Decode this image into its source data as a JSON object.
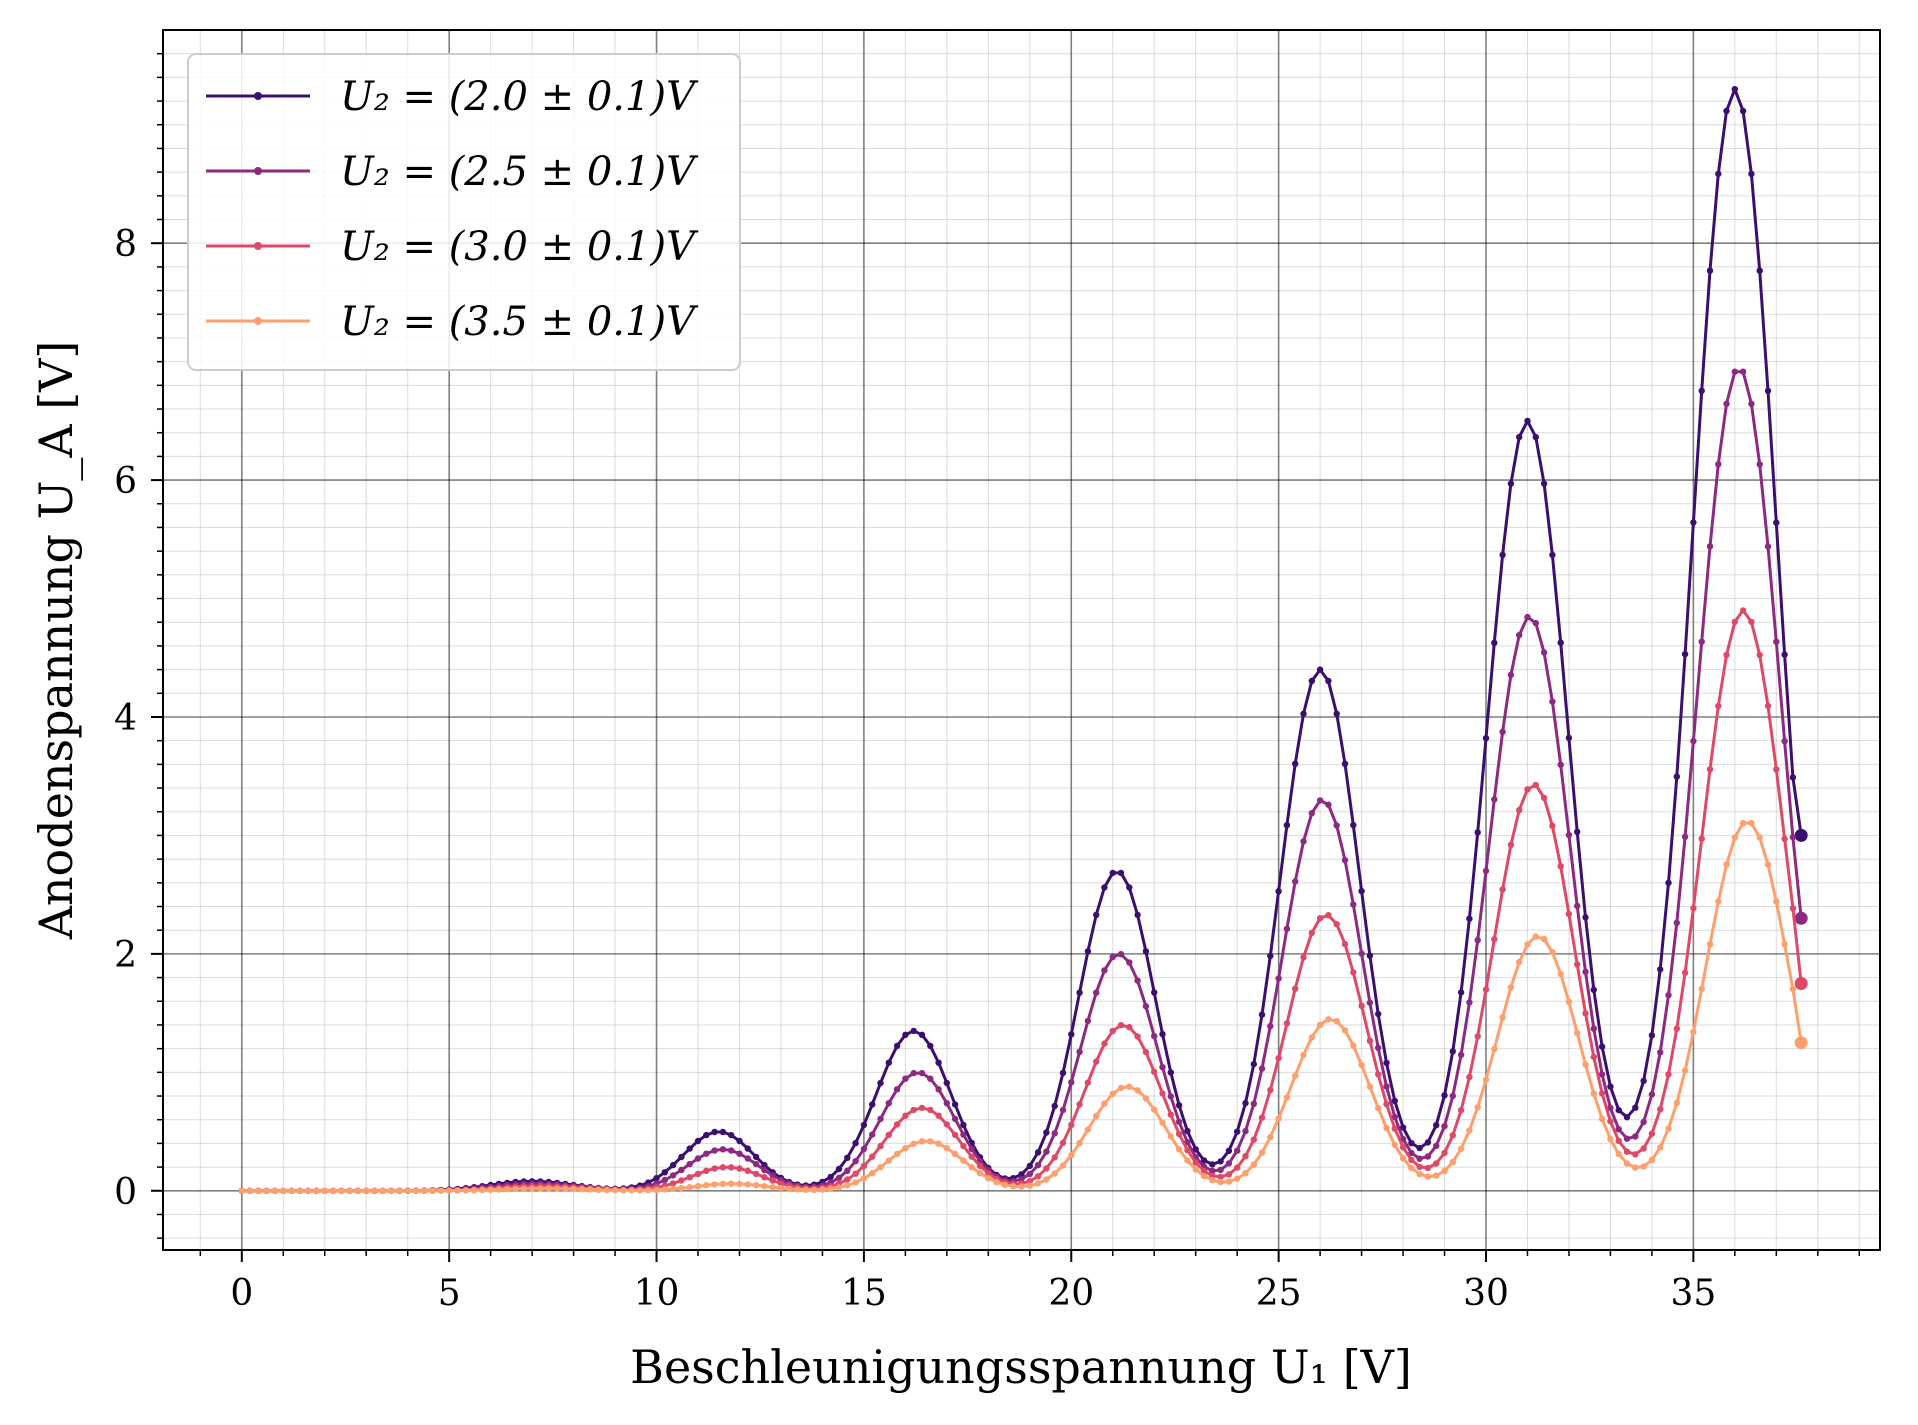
{
  "chart_data": {
    "type": "line",
    "title": "",
    "xlabel": "Beschleunigungsspannung U₁ [V]",
    "ylabel": "Anodenspannung U_A [V]",
    "xlim": [
      -1.9,
      39.5
    ],
    "ylim": [
      -0.5,
      9.8
    ],
    "x_ticks": [
      0,
      5,
      10,
      15,
      20,
      25,
      30,
      35
    ],
    "x_tick_labels": [
      "0",
      "5",
      "10",
      "15",
      "20",
      "25",
      "30",
      "35"
    ],
    "y_ticks": [
      0,
      2,
      4,
      6,
      8
    ],
    "y_tick_labels": [
      "0",
      "2",
      "4",
      "6",
      "8"
    ],
    "grid": true,
    "minor_grid": true,
    "legend_position": "top-left",
    "x": {
      "start": 0,
      "end": 37.6,
      "step": 0.2
    },
    "series": [
      {
        "name": "U₂ = (2.0 ± 0.1)V",
        "color": "#3b0f70",
        "peaks": [
          [
            7.0,
            0.08,
            1.0
          ],
          [
            11.5,
            0.5,
            0.85
          ],
          [
            16.2,
            1.35,
            0.9
          ],
          [
            21.1,
            2.7,
            0.92
          ],
          [
            26.0,
            4.4,
            0.95
          ],
          [
            31.0,
            6.5,
            0.97
          ],
          [
            36.0,
            9.3,
            1.0
          ]
        ],
        "end_value": 3.0
      },
      {
        "name": "U₂ = (2.5 ± 0.1)V",
        "color": "#8c2981",
        "peaks": [
          [
            7.1,
            0.06,
            1.0
          ],
          [
            11.6,
            0.35,
            0.85
          ],
          [
            16.3,
            1.0,
            0.9
          ],
          [
            21.15,
            2.0,
            0.92
          ],
          [
            26.05,
            3.3,
            0.95
          ],
          [
            31.05,
            4.85,
            0.97
          ],
          [
            36.1,
            6.95,
            1.0
          ]
        ],
        "end_value": 2.3
      },
      {
        "name": "U₂ = (3.0 ± 0.1)V",
        "color": "#de4968",
        "peaks": [
          [
            7.2,
            0.04,
            1.0
          ],
          [
            11.7,
            0.2,
            0.85
          ],
          [
            16.4,
            0.7,
            0.9
          ],
          [
            21.25,
            1.4,
            0.92
          ],
          [
            26.15,
            2.33,
            0.95
          ],
          [
            31.15,
            3.43,
            0.97
          ],
          [
            36.2,
            4.9,
            1.0
          ]
        ],
        "end_value": 1.75
      },
      {
        "name": "U₂ = (3.5 ± 0.1)V",
        "color": "#fe9f6d",
        "peaks": [
          [
            7.3,
            0.02,
            1.0
          ],
          [
            11.8,
            0.06,
            0.85
          ],
          [
            16.5,
            0.42,
            0.9
          ],
          [
            21.35,
            0.88,
            0.92
          ],
          [
            26.25,
            1.45,
            0.95
          ],
          [
            31.25,
            2.15,
            0.97
          ],
          [
            36.3,
            3.12,
            1.0
          ]
        ],
        "end_value": 1.25
      }
    ]
  }
}
